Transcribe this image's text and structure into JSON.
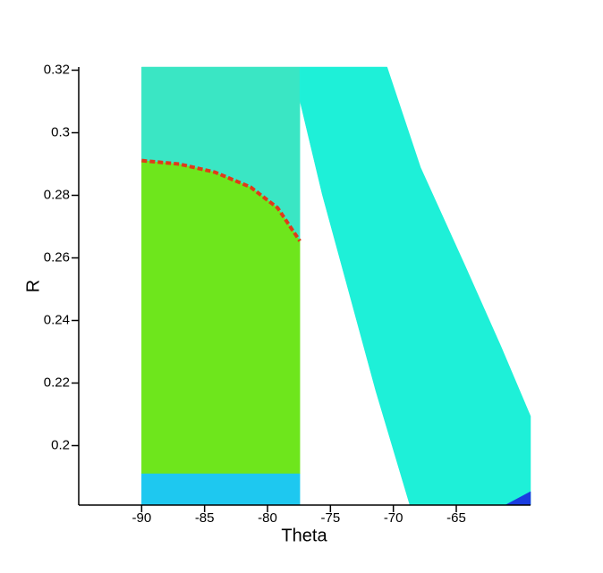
{
  "chart_data": {
    "type": "contour",
    "x_label": "Theta",
    "y_label": "R",
    "xlim": [
      -95,
      -59.1
    ],
    "ylim": [
      0.181,
      0.321
    ],
    "xticks": [
      -90,
      -85,
      -80,
      -75,
      -70,
      -65
    ],
    "yticks": [
      0.2,
      0.22,
      0.24,
      0.26,
      0.28,
      0.3,
      0.32
    ],
    "regions": [
      {
        "shape": "polygon",
        "color": "#3ae6c4",
        "x": [
          -90,
          -77.43,
          -77.43,
          -79.2,
          -81.34,
          -84.18,
          -87.02,
          -90
        ],
        "y": [
          0.321,
          0.321,
          0.2654,
          0.276,
          0.2826,
          0.2874,
          0.29,
          0.2911
        ]
      },
      {
        "shape": "polygon",
        "color": "#6ee61c",
        "x": [
          -90,
          -87.02,
          -84.18,
          -81.34,
          -79.2,
          -77.43,
          -77.43,
          -90
        ],
        "y": [
          0.2911,
          0.29,
          0.2874,
          0.2826,
          0.276,
          0.2654,
          0.191,
          0.191
        ]
      },
      {
        "shape": "polygon",
        "color": "#1ec8f0",
        "x": [
          -90,
          -77.43,
          -77.43,
          -90
        ],
        "y": [
          0.191,
          0.191,
          0.181,
          0.181
        ]
      },
      {
        "shape": "polygon",
        "color": "#1ef0d8",
        "x": [
          -77.43,
          -70.5,
          -67.84,
          -64.29,
          -61.45,
          -59.1,
          -59.1,
          -68.69,
          -71.39,
          -73.52,
          -75.65,
          -77.43
        ],
        "y": [
          0.321,
          0.321,
          0.2889,
          0.2574,
          0.2317,
          0.2094,
          0.181,
          0.181,
          0.2174,
          0.2489,
          0.2803,
          0.3103
        ]
      },
      {
        "shape": "polygon",
        "color": "#1a3ce0",
        "x": [
          -61.1,
          -59.1,
          -59.1
        ],
        "y": [
          0.181,
          0.1853,
          0.181
        ]
      },
      {
        "shape": "line",
        "color": "#e03a1a",
        "x": [
          -90,
          -87.02,
          -84.18,
          -81.34,
          -79.2,
          -77.43
        ],
        "y": [
          0.2911,
          0.29,
          0.2874,
          0.2826,
          0.276,
          0.2654
        ]
      }
    ]
  }
}
